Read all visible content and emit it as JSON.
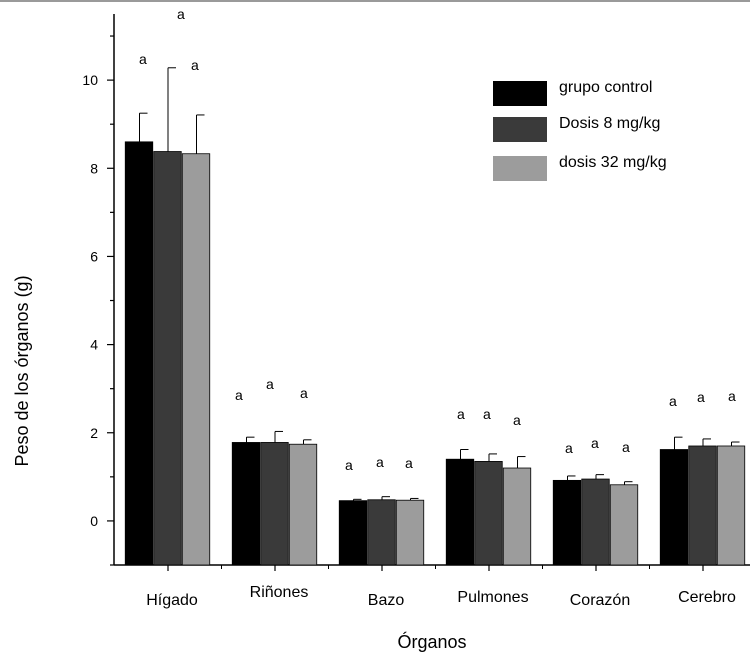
{
  "chart_data": {
    "type": "bar",
    "xlabel": "Órganos",
    "ylabel": "Peso de los órganos (g)",
    "ylim": [
      -1.0,
      11.5
    ],
    "yticks": [
      0,
      2,
      4,
      6,
      8,
      10
    ],
    "categories": [
      "Hígado",
      "Riñones",
      "Bazo",
      "Pulmones",
      "Corazón",
      "Cerebro"
    ],
    "series": [
      {
        "name": "grupo control",
        "color": "#000000",
        "values": [
          8.6,
          1.78,
          0.46,
          1.4,
          0.92,
          1.62
        ],
        "errors": [
          0.65,
          0.12,
          0.03,
          0.22,
          0.1,
          0.28
        ],
        "labels": [
          "a",
          "a",
          "a",
          "a",
          "a",
          "a"
        ]
      },
      {
        "name": "Dosis 8 mg/kg",
        "color": "#3a3a3a",
        "values": [
          8.38,
          1.78,
          0.48,
          1.35,
          0.95,
          1.7
        ],
        "errors": [
          1.9,
          0.25,
          0.07,
          0.17,
          0.1,
          0.16
        ],
        "labels": [
          "a",
          "a",
          "a",
          "a",
          "a",
          "a"
        ]
      },
      {
        "name": "dosis 32 mg/kg",
        "color": "#9c9c9c",
        "values": [
          8.33,
          1.74,
          0.47,
          1.2,
          0.82,
          1.7
        ],
        "errors": [
          0.88,
          0.1,
          0.04,
          0.26,
          0.07,
          0.09
        ],
        "labels": [
          "a",
          "a",
          "a",
          "a",
          "a",
          "a"
        ]
      }
    ],
    "legend": "top-right",
    "grid": false
  }
}
